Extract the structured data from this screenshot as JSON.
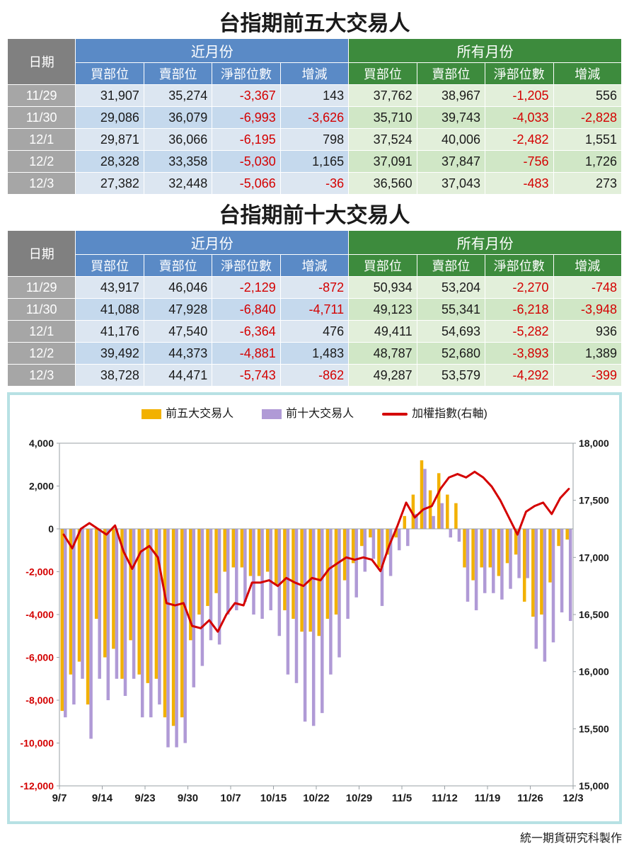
{
  "title_top5": "台指期前五大交易人",
  "title_top10": "台指期前十大交易人",
  "credit": "統一期貨研究科製作",
  "table_headers": {
    "date": "日期",
    "near_month": "近月份",
    "all_months": "所有月份",
    "buy": "買部位",
    "sell": "賣部位",
    "net": "淨部位數",
    "change": "增減"
  },
  "colors": {
    "hdr_grey": "#808080",
    "hdr_blue": "#5a8ac6",
    "hdr_green": "#3d8b3d",
    "date_cell": "#a6a6a6",
    "blue_a": "#dce6f1",
    "blue_b": "#c5d9ed",
    "green_a": "#e2efda",
    "green_b": "#d0e7c6",
    "negative_text": "#d40000",
    "chart_border": "#b7e1e4",
    "bar_top5": "#f2b100",
    "bar_top10": "#b09ad6",
    "line_index": "#d40000",
    "axis_label": "#1a1a1a"
  },
  "top5_rows": [
    {
      "date": "11/29",
      "nb": 31907,
      "ns": 35274,
      "nn": -3367,
      "nc": 143,
      "ab": 37762,
      "as": 38967,
      "an": -1205,
      "ac": 556
    },
    {
      "date": "11/30",
      "nb": 29086,
      "ns": 36079,
      "nn": -6993,
      "nc": -3626,
      "ab": 35710,
      "as": 39743,
      "an": -4033,
      "ac": -2828
    },
    {
      "date": "12/1",
      "nb": 29871,
      "ns": 36066,
      "nn": -6195,
      "nc": 798,
      "ab": 37524,
      "as": 40006,
      "an": -2482,
      "ac": 1551
    },
    {
      "date": "12/2",
      "nb": 28328,
      "ns": 33358,
      "nn": -5030,
      "nc": 1165,
      "ab": 37091,
      "as": 37847,
      "an": -756,
      "ac": 1726
    },
    {
      "date": "12/3",
      "nb": 27382,
      "ns": 32448,
      "nn": -5066,
      "nc": -36,
      "ab": 36560,
      "as": 37043,
      "an": -483,
      "ac": 273
    }
  ],
  "top10_rows": [
    {
      "date": "11/29",
      "nb": 43917,
      "ns": 46046,
      "nn": -2129,
      "nc": -872,
      "ab": 50934,
      "as": 53204,
      "an": -2270,
      "ac": -748
    },
    {
      "date": "11/30",
      "nb": 41088,
      "ns": 47928,
      "nn": -6840,
      "nc": -4711,
      "ab": 49123,
      "as": 55341,
      "an": -6218,
      "ac": -3948
    },
    {
      "date": "12/1",
      "nb": 41176,
      "ns": 47540,
      "nn": -6364,
      "nc": 476,
      "ab": 49411,
      "as": 54693,
      "an": -5282,
      "ac": 936
    },
    {
      "date": "12/2",
      "nb": 39492,
      "ns": 44373,
      "nn": -4881,
      "nc": 1483,
      "ab": 48787,
      "as": 52680,
      "an": -3893,
      "ac": 1389
    },
    {
      "date": "12/3",
      "nb": 38728,
      "ns": 44471,
      "nn": -5743,
      "nc": -862,
      "ab": 49287,
      "as": 53579,
      "an": -4292,
      "ac": -399
    }
  ],
  "chart": {
    "type": "grouped-bar-with-line",
    "legend": {
      "top5": "前五大交易人",
      "top10": "前十大交易人",
      "index": "加權指數(右軸)"
    },
    "y_left": {
      "min": -12000,
      "max": 4000,
      "step": 2000,
      "fontsize": 14
    },
    "y_right": {
      "min": 15000,
      "max": 18000,
      "step": 500,
      "fontsize": 14
    },
    "x_ticks": [
      "9/7",
      "9/14",
      "9/23",
      "9/30",
      "10/7",
      "10/15",
      "10/22",
      "10/29",
      "11/5",
      "11/12",
      "11/19",
      "11/26",
      "12/3"
    ],
    "x_fontsize": 15,
    "bar_width": 4.5,
    "bar_gap": 0,
    "line_width": 3,
    "data": [
      {
        "t5": -8500,
        "t10": -8800,
        "idx": 17200
      },
      {
        "t5": -6800,
        "t10": -8200,
        "idx": 17080
      },
      {
        "t5": -6200,
        "t10": -7000,
        "idx": 17250
      },
      {
        "t5": -8200,
        "t10": -9800,
        "idx": 17300
      },
      {
        "t5": -4200,
        "t10": -7000,
        "idx": 17250
      },
      {
        "t5": -6000,
        "t10": -8000,
        "idx": 17200
      },
      {
        "t5": -5600,
        "t10": -7000,
        "idx": 17280
      },
      {
        "t5": -7000,
        "t10": -7800,
        "idx": 17050
      },
      {
        "t5": -5200,
        "t10": -7000,
        "idx": 16900
      },
      {
        "t5": -6800,
        "t10": -8800,
        "idx": 17050
      },
      {
        "t5": -7200,
        "t10": -8800,
        "idx": 17100
      },
      {
        "t5": -7000,
        "t10": -8200,
        "idx": 17000
      },
      {
        "t5": -8800,
        "t10": -10200,
        "idx": 16600
      },
      {
        "t5": -9200,
        "t10": -10200,
        "idx": 16580
      },
      {
        "t5": -8800,
        "t10": -10000,
        "idx": 16600
      },
      {
        "t5": -5200,
        "t10": -7400,
        "idx": 16400
      },
      {
        "t5": -4000,
        "t10": -6400,
        "idx": 16380
      },
      {
        "t5": -3600,
        "t10": -5200,
        "idx": 16450
      },
      {
        "t5": -3000,
        "t10": -5400,
        "idx": 16350
      },
      {
        "t5": -2000,
        "t10": -4000,
        "idx": 16500
      },
      {
        "t5": -1800,
        "t10": -3800,
        "idx": 16600
      },
      {
        "t5": -1800,
        "t10": -3400,
        "idx": 16580
      },
      {
        "t5": -2200,
        "t10": -4000,
        "idx": 16780
      },
      {
        "t5": -2200,
        "t10": -4200,
        "idx": 16780
      },
      {
        "t5": -2000,
        "t10": -3800,
        "idx": 16800
      },
      {
        "t5": -2600,
        "t10": -5000,
        "idx": 16750
      },
      {
        "t5": -3800,
        "t10": -6800,
        "idx": 16820
      },
      {
        "t5": -4200,
        "t10": -7200,
        "idx": 16780
      },
      {
        "t5": -4800,
        "t10": -9000,
        "idx": 16750
      },
      {
        "t5": -4800,
        "t10": -9200,
        "idx": 16820
      },
      {
        "t5": -5000,
        "t10": -8600,
        "idx": 16800
      },
      {
        "t5": -4200,
        "t10": -6800,
        "idx": 16900
      },
      {
        "t5": -4000,
        "t10": -6000,
        "idx": 16950
      },
      {
        "t5": -2400,
        "t10": -4200,
        "idx": 17000
      },
      {
        "t5": -1600,
        "t10": -3200,
        "idx": 16980
      },
      {
        "t5": -800,
        "t10": -2000,
        "idx": 17000
      },
      {
        "t5": -400,
        "t10": -1400,
        "idx": 16980
      },
      {
        "t5": -1800,
        "t10": -3600,
        "idx": 16880
      },
      {
        "t5": -1200,
        "t10": -2200,
        "idx": 17100
      },
      {
        "t5": -400,
        "t10": -1000,
        "idx": 17280
      },
      {
        "t5": 600,
        "t10": -800,
        "idx": 17480
      },
      {
        "t5": 1600,
        "t10": 700,
        "idx": 17350
      },
      {
        "t5": 3200,
        "t10": 2800,
        "idx": 17420
      },
      {
        "t5": 1800,
        "t10": 600,
        "idx": 17450
      },
      {
        "t5": 2600,
        "t10": 1200,
        "idx": 17600
      },
      {
        "t5": 1600,
        "t10": -400,
        "idx": 17700
      },
      {
        "t5": 1200,
        "t10": -600,
        "idx": 17730
      },
      {
        "t5": -1800,
        "t10": -3400,
        "idx": 17700
      },
      {
        "t5": -2400,
        "t10": -3800,
        "idx": 17750
      },
      {
        "t5": -1800,
        "t10": -3000,
        "idx": 17700
      },
      {
        "t5": -1800,
        "t10": -3000,
        "idx": 17620
      },
      {
        "t5": -2200,
        "t10": -3300,
        "idx": 17500
      },
      {
        "t5": -1600,
        "t10": -2800,
        "idx": 17350
      },
      {
        "t5": -1200,
        "t10": -2300,
        "idx": 17200
      },
      {
        "t5": -3400,
        "t10": -2300,
        "idx": 17400
      },
      {
        "t5": -4100,
        "t10": -5600,
        "idx": 17450
      },
      {
        "t5": -4000,
        "t10": -6200,
        "idx": 17480
      },
      {
        "t5": -2500,
        "t10": -5300,
        "idx": 17380
      },
      {
        "t5": -800,
        "t10": -3900,
        "idx": 17520
      },
      {
        "t5": -500,
        "t10": -4300,
        "idx": 17600
      }
    ]
  }
}
